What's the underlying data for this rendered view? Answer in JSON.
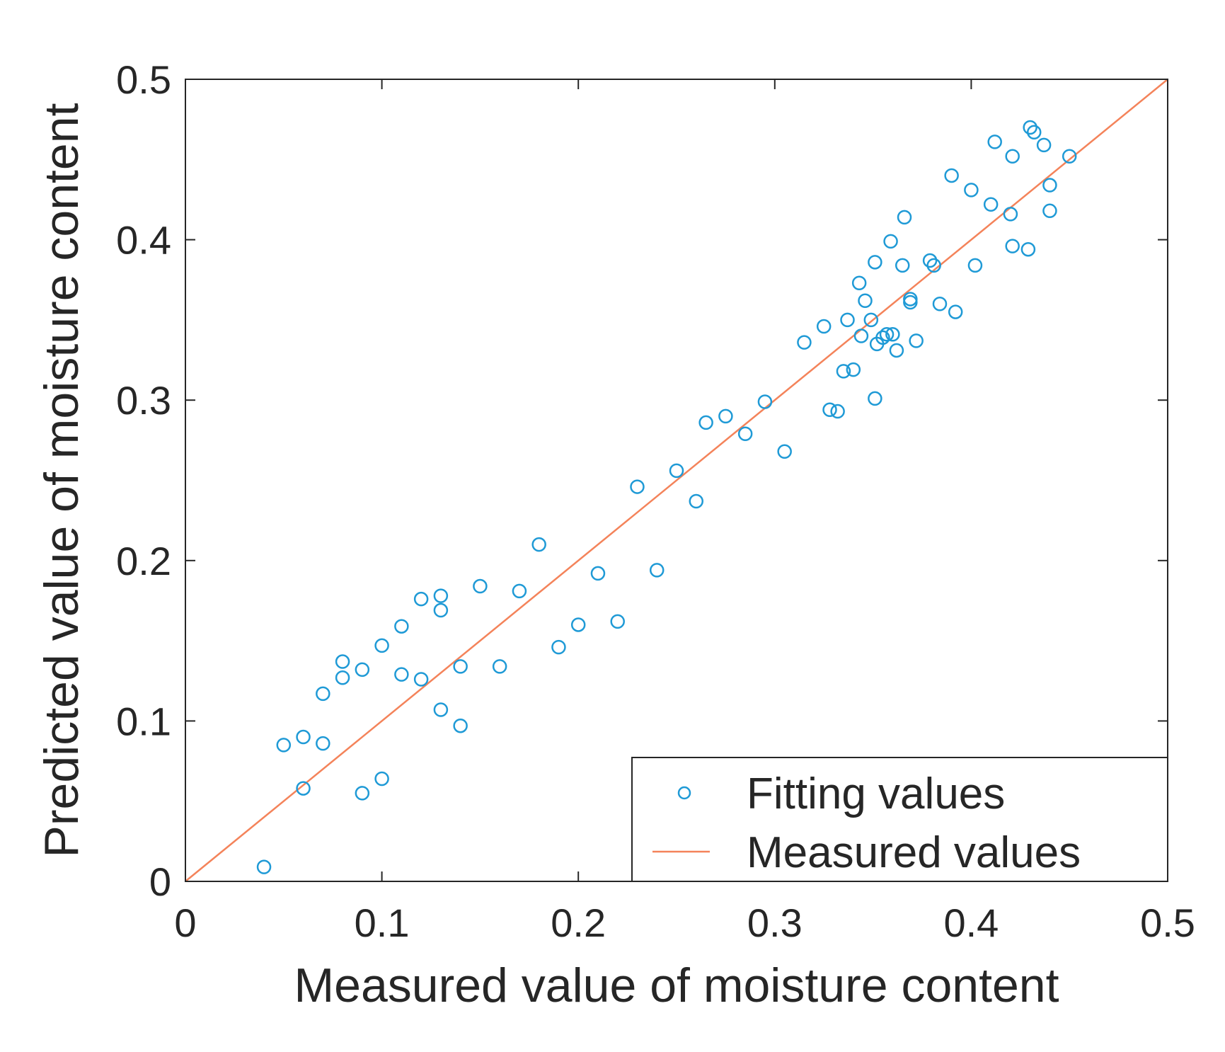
{
  "chart_data": {
    "type": "scatter",
    "xlabel": "Measured value of moisture content",
    "ylabel": "Predicted value of moisture content",
    "xlim": [
      0,
      0.5
    ],
    "ylim": [
      0,
      0.5
    ],
    "xticks": [
      "0",
      "0.1",
      "0.2",
      "0.3",
      "0.4",
      "0.5"
    ],
    "yticks": [
      "0",
      "0.1",
      "0.2",
      "0.3",
      "0.4",
      "0.5"
    ],
    "grid": false,
    "legend_position": "bottom-right",
    "colors": {
      "points": "#1f9ad6",
      "line": "#f4835a",
      "axis": "#262626"
    },
    "series": [
      {
        "name": "Fitting values",
        "kind": "scatter",
        "points": [
          [
            0.04,
            0.009
          ],
          [
            0.05,
            0.085
          ],
          [
            0.06,
            0.09
          ],
          [
            0.06,
            0.058
          ],
          [
            0.07,
            0.117
          ],
          [
            0.07,
            0.086
          ],
          [
            0.08,
            0.137
          ],
          [
            0.08,
            0.127
          ],
          [
            0.09,
            0.132
          ],
          [
            0.09,
            0.055
          ],
          [
            0.1,
            0.147
          ],
          [
            0.1,
            0.064
          ],
          [
            0.11,
            0.159
          ],
          [
            0.11,
            0.129
          ],
          [
            0.12,
            0.176
          ],
          [
            0.12,
            0.126
          ],
          [
            0.13,
            0.178
          ],
          [
            0.13,
            0.169
          ],
          [
            0.13,
            0.107
          ],
          [
            0.14,
            0.134
          ],
          [
            0.14,
            0.097
          ],
          [
            0.15,
            0.184
          ],
          [
            0.16,
            0.134
          ],
          [
            0.17,
            0.181
          ],
          [
            0.18,
            0.21
          ],
          [
            0.19,
            0.146
          ],
          [
            0.2,
            0.16
          ],
          [
            0.21,
            0.192
          ],
          [
            0.22,
            0.162
          ],
          [
            0.23,
            0.246
          ],
          [
            0.24,
            0.194
          ],
          [
            0.25,
            0.256
          ],
          [
            0.26,
            0.237
          ],
          [
            0.265,
            0.286
          ],
          [
            0.275,
            0.29
          ],
          [
            0.285,
            0.279
          ],
          [
            0.295,
            0.299
          ],
          [
            0.305,
            0.268
          ],
          [
            0.315,
            0.336
          ],
          [
            0.325,
            0.346
          ],
          [
            0.328,
            0.294
          ],
          [
            0.332,
            0.293
          ],
          [
            0.335,
            0.318
          ],
          [
            0.337,
            0.35
          ],
          [
            0.34,
            0.319
          ],
          [
            0.343,
            0.373
          ],
          [
            0.344,
            0.34
          ],
          [
            0.346,
            0.362
          ],
          [
            0.349,
            0.35
          ],
          [
            0.351,
            0.386
          ],
          [
            0.351,
            0.301
          ],
          [
            0.352,
            0.335
          ],
          [
            0.355,
            0.339
          ],
          [
            0.357,
            0.341
          ],
          [
            0.359,
            0.399
          ],
          [
            0.36,
            0.341
          ],
          [
            0.362,
            0.331
          ],
          [
            0.365,
            0.384
          ],
          [
            0.366,
            0.414
          ],
          [
            0.369,
            0.363
          ],
          [
            0.369,
            0.361
          ],
          [
            0.372,
            0.337
          ],
          [
            0.379,
            0.387
          ],
          [
            0.381,
            0.384
          ],
          [
            0.384,
            0.36
          ],
          [
            0.39,
            0.44
          ],
          [
            0.392,
            0.355
          ],
          [
            0.4,
            0.431
          ],
          [
            0.402,
            0.384
          ],
          [
            0.41,
            0.422
          ],
          [
            0.412,
            0.461
          ],
          [
            0.42,
            0.416
          ],
          [
            0.421,
            0.452
          ],
          [
            0.421,
            0.396
          ],
          [
            0.429,
            0.394
          ],
          [
            0.43,
            0.47
          ],
          [
            0.432,
            0.467
          ],
          [
            0.437,
            0.459
          ],
          [
            0.44,
            0.434
          ],
          [
            0.44,
            0.418
          ],
          [
            0.45,
            0.452
          ]
        ]
      },
      {
        "name": "Measured values",
        "kind": "line",
        "points": [
          [
            0,
            0
          ],
          [
            0.5,
            0.5
          ]
        ]
      }
    ]
  }
}
